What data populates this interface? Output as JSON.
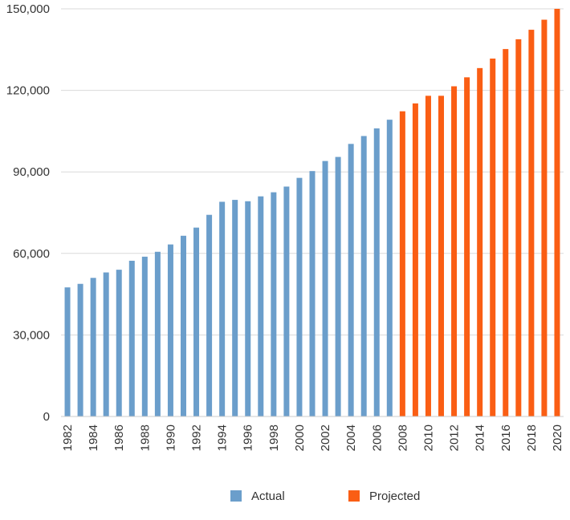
{
  "chart_data": {
    "type": "bar",
    "title": "",
    "xlabel": "",
    "ylabel": "",
    "ylim": [
      0,
      150000
    ],
    "yticks": [
      {
        "value": 0,
        "label": "0"
      },
      {
        "value": 30000,
        "label": "30,000"
      },
      {
        "value": 60000,
        "label": "60,000"
      },
      {
        "value": 90000,
        "label": "90,000"
      },
      {
        "value": 120000,
        "label": "120,000"
      },
      {
        "value": 150000,
        "label": "150,000"
      }
    ],
    "grid": "horizontal",
    "legend_position": "bottom-center",
    "categories": [
      "1982",
      "1983",
      "1984",
      "1985",
      "1986",
      "1987",
      "1988",
      "1989",
      "1990",
      "1991",
      "1992",
      "1993",
      "1994",
      "1995",
      "1996",
      "1997",
      "1998",
      "1999",
      "2000",
      "2001",
      "2002",
      "2003",
      "2004",
      "2005",
      "2006",
      "2007",
      "2008",
      "2009",
      "2010",
      "2011",
      "2012",
      "2013",
      "2014",
      "2015",
      "2016",
      "2017",
      "2018",
      "2019",
      "2020"
    ],
    "xtick_labels": [
      "1982",
      "1984",
      "1986",
      "1988",
      "1990",
      "1992",
      "1994",
      "1996",
      "1998",
      "2000",
      "2002",
      "2004",
      "2006",
      "2008",
      "2010",
      "2012",
      "2014",
      "2016",
      "2018",
      "2020"
    ],
    "series": [
      {
        "name": "Actual",
        "color": "#6b9ecb",
        "values": [
          47500,
          48800,
          51000,
          53000,
          54000,
          57300,
          58800,
          60600,
          63300,
          66500,
          69500,
          74200,
          79000,
          79700,
          79200,
          81000,
          82500,
          84600,
          87800,
          90300,
          94000,
          95500,
          100300,
          103200,
          106000,
          109200,
          null,
          null,
          null,
          null,
          null,
          null,
          null,
          null,
          null,
          null,
          null,
          null,
          null
        ]
      },
      {
        "name": "Projected",
        "color": "#fa5e14",
        "values": [
          null,
          null,
          null,
          null,
          null,
          null,
          null,
          null,
          null,
          null,
          null,
          null,
          null,
          null,
          null,
          null,
          null,
          null,
          null,
          null,
          null,
          null,
          null,
          null,
          null,
          null,
          112300,
          115200,
          118000,
          118000,
          121500,
          124800,
          128200,
          131700,
          135200,
          138800,
          142300,
          146000,
          150000
        ]
      }
    ]
  }
}
